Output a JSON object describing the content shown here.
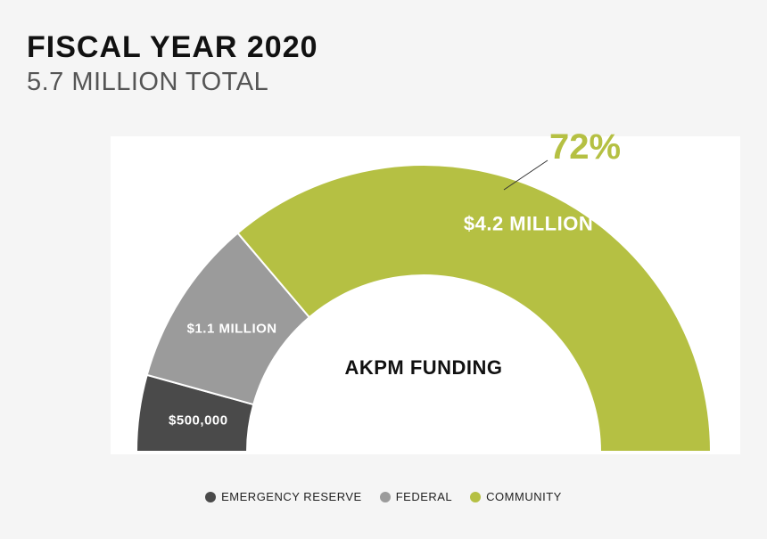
{
  "header": {
    "title": "FISCAL YEAR 2020",
    "subtitle": "5.7 MILLION TOTAL"
  },
  "chart_data": {
    "type": "pie",
    "variant": "half-donut",
    "center_label": "AKPM FUNDING",
    "series": [
      {
        "name": "EMERGENCY RESERVE",
        "value": 0.5,
        "label": "$500,000",
        "color": "#4a4a4a"
      },
      {
        "name": "FEDERAL",
        "value": 1.1,
        "label": "$1.1 MILLION",
        "color": "#9b9b9b"
      },
      {
        "name": "COMMUNITY",
        "value": 4.2,
        "label": "$4.2 MILLION",
        "color": "#b5c043"
      }
    ],
    "annotation": {
      "text": "72%",
      "target": "COMMUNITY"
    },
    "legend_position": "bottom"
  }
}
